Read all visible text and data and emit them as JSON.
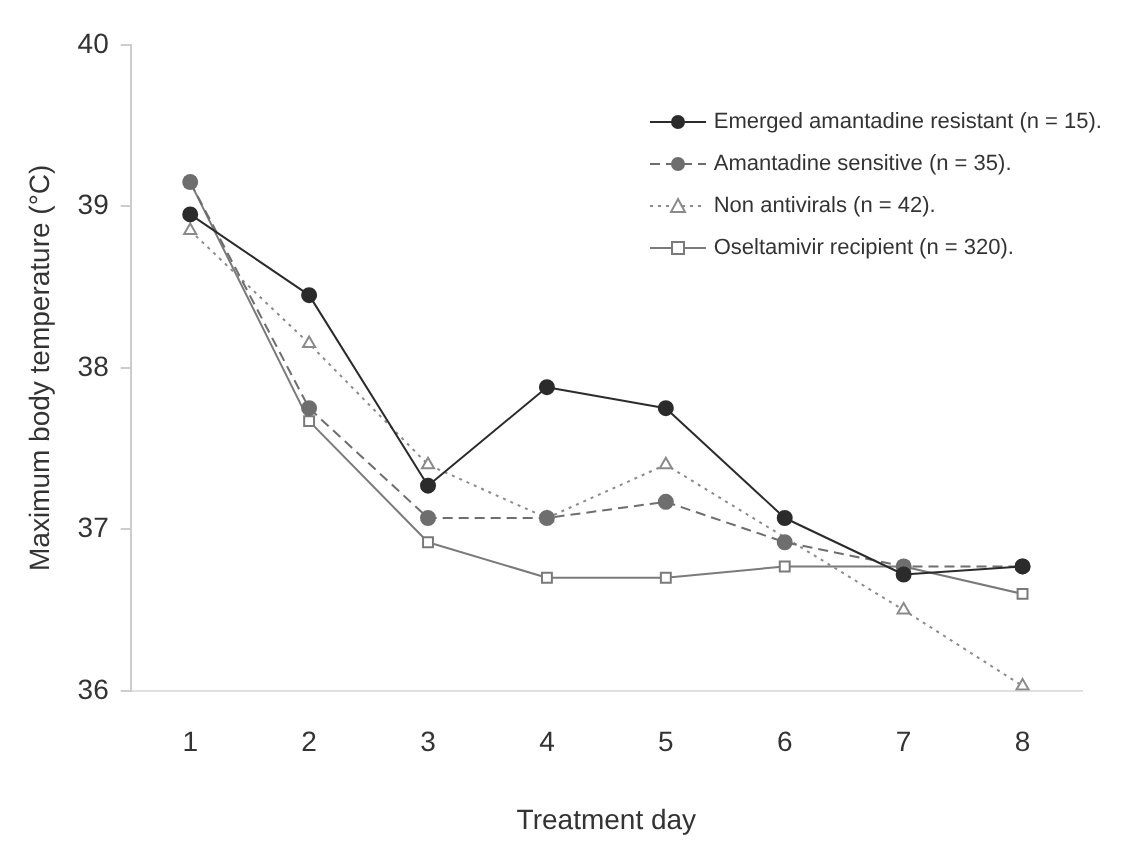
{
  "chart_data": {
    "type": "line",
    "xlabel": "Treatment day",
    "ylabel": "Maximum body temperature (°C)",
    "categories": [
      "1",
      "2",
      "3",
      "4",
      "5",
      "6",
      "7",
      "8"
    ],
    "ylim": [
      36,
      40
    ],
    "yticks": [
      36,
      37,
      38,
      39,
      40
    ],
    "grid": false,
    "legend": "top right",
    "series": [
      {
        "name": "Emerged amantadine resistant (n = 15).",
        "color": "#2b2b2b",
        "marker": "circle",
        "line_style": "solid",
        "values": [
          38.95,
          38.45,
          37.27,
          37.88,
          37.75,
          37.07,
          36.72,
          36.77
        ]
      },
      {
        "name": "Amantadine sensitive (n = 35).",
        "color": "#6e6e6e",
        "marker": "circle",
        "line_style": "dashed",
        "values": [
          39.15,
          37.75,
          37.07,
          37.07,
          37.17,
          36.92,
          36.77,
          36.77
        ]
      },
      {
        "name": "Non antivirals (n = 42).",
        "color": "#8a8a8a",
        "marker": "triangle",
        "line_style": "dotted",
        "values": [
          38.85,
          38.15,
          37.4,
          37.07,
          37.4,
          null,
          36.5,
          36.03
        ]
      },
      {
        "name": "Oseltamivir recipient (n = 320).",
        "color": "#7a7a7a",
        "marker": "square",
        "line_style": "solid",
        "values": [
          39.15,
          37.67,
          36.92,
          36.7,
          36.7,
          36.77,
          36.77,
          36.6
        ]
      }
    ]
  }
}
